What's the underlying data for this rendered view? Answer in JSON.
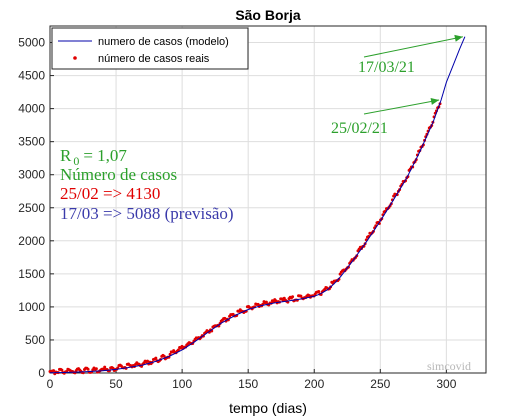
{
  "chart_data": {
    "type": "line",
    "title": "São Borja",
    "xlabel": "tempo (dias)",
    "ylabel": "",
    "xlim": [
      0,
      330
    ],
    "ylim": [
      0,
      5250
    ],
    "xticks": [
      0,
      50,
      100,
      150,
      200,
      250,
      300
    ],
    "yticks": [
      0,
      500,
      1000,
      1500,
      2000,
      2500,
      3000,
      3500,
      4000,
      4500,
      5000
    ],
    "grid": true,
    "legend_position": "top-left",
    "series": [
      {
        "name": "numero de casos (modelo)",
        "style": "line",
        "color": "#0000aa",
        "x": [
          0,
          10,
          20,
          30,
          40,
          50,
          60,
          70,
          80,
          90,
          100,
          110,
          120,
          130,
          140,
          150,
          160,
          170,
          180,
          190,
          200,
          205,
          210,
          215,
          220,
          230,
          240,
          250,
          260,
          270,
          280,
          290,
          296,
          300,
          305,
          310,
          314
        ],
        "y": [
          5,
          8,
          13,
          22,
          35,
          55,
          85,
          120,
          175,
          250,
          350,
          480,
          620,
          760,
          870,
          960,
          1020,
          1060,
          1090,
          1120,
          1160,
          1200,
          1260,
          1350,
          1460,
          1720,
          2000,
          2300,
          2620,
          2950,
          3350,
          3800,
          4130,
          4400,
          4650,
          4900,
          5088
        ]
      },
      {
        "name": "número de casos reais",
        "style": "points",
        "color": "#e00000",
        "x": [
          0,
          10,
          20,
          30,
          40,
          50,
          60,
          70,
          80,
          90,
          100,
          110,
          120,
          130,
          140,
          150,
          160,
          170,
          180,
          190,
          200,
          205,
          210,
          215,
          220,
          230,
          240,
          250,
          260,
          270,
          280,
          290,
          296
        ],
        "y": [
          5,
          8,
          13,
          22,
          35,
          55,
          85,
          120,
          175,
          250,
          350,
          480,
          620,
          760,
          870,
          960,
          1020,
          1060,
          1090,
          1120,
          1160,
          1200,
          1260,
          1350,
          1460,
          1720,
          2000,
          2300,
          2620,
          2950,
          3350,
          3800,
          4130
        ]
      }
    ],
    "annotations": [
      {
        "text": "17/03/21",
        "color": "#2ca02c",
        "arrow_to": [
          314,
          5088
        ]
      },
      {
        "text": "25/02/21",
        "color": "#2ca02c",
        "arrow_to": [
          296,
          4130
        ]
      }
    ],
    "info": {
      "r0_label": "R",
      "r0_sub": "0",
      "r0_value": "= 1,07",
      "casos_label": "Número de casos",
      "line_real": "25/02 => 4130",
      "line_real_color": "#e00000",
      "line_forecast": "17/03 => 5088 (previsão)",
      "line_forecast_color": "#3a3aaa",
      "label_color": "#2ca02c"
    },
    "watermark": "simcovid"
  }
}
